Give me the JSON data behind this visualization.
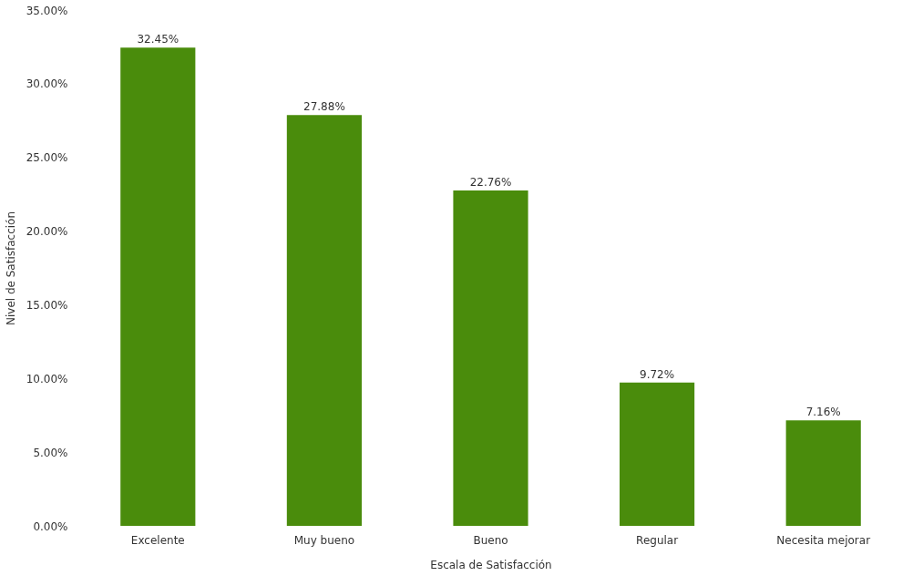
{
  "chart_data": {
    "type": "bar",
    "xlabel": "Escala de Satisfacción",
    "ylabel": "Nivel de Satisfacción",
    "categories": [
      "Excelente",
      "Muy bueno",
      "Bueno",
      "Regular",
      "Necesita mejorar"
    ],
    "values": [
      32.45,
      27.88,
      22.76,
      9.72,
      7.16
    ],
    "value_labels": [
      "32.45%",
      "27.88%",
      "22.76%",
      "9.72%",
      "7.16%"
    ],
    "color": "#4a8c0c",
    "ylim": [
      0,
      35
    ],
    "yticks": [
      {
        "value": 0,
        "label": "0.00%"
      },
      {
        "value": 5,
        "label": "5.00%"
      },
      {
        "value": 10,
        "label": "10.00%"
      },
      {
        "value": 15,
        "label": "15.00%"
      },
      {
        "value": 20,
        "label": "20.00%"
      },
      {
        "value": 25,
        "label": "25.00%"
      },
      {
        "value": 30,
        "label": "30.00%"
      },
      {
        "value": 35,
        "label": "35.00%"
      }
    ],
    "grid": false
  }
}
